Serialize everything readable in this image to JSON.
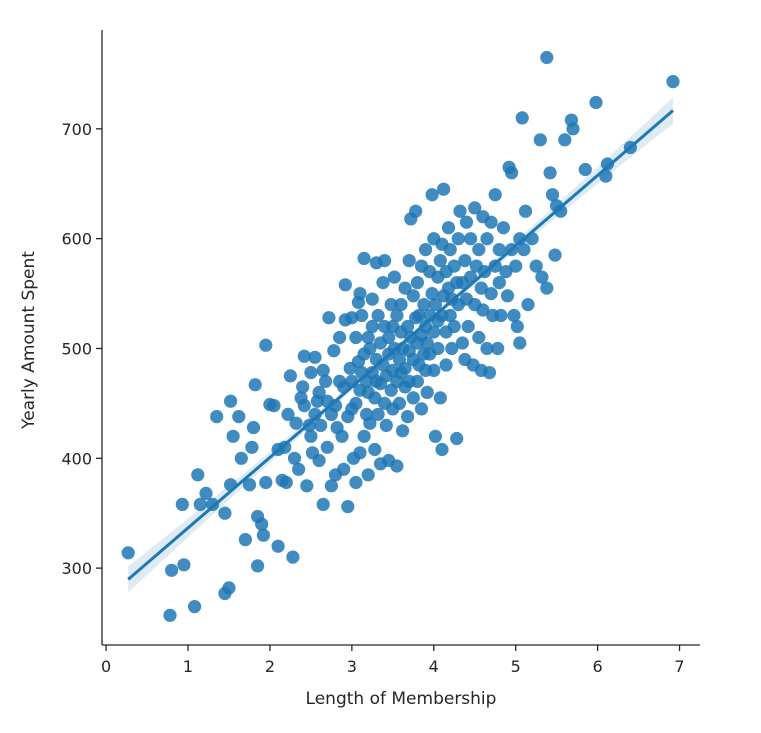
{
  "chart_data": {
    "type": "scatter",
    "xlabel": "Length of Membership",
    "ylabel": "Yearly Amount Spent",
    "xlim": [
      -0.05,
      7.25
    ],
    "ylim": [
      230,
      790
    ],
    "xticks": [
      0,
      1,
      2,
      3,
      4,
      5,
      6,
      7
    ],
    "yticks": [
      300,
      400,
      500,
      600,
      700
    ],
    "grid": false,
    "legend": "none",
    "colors": {
      "points": "#1f77b4",
      "line": "#1f77b4",
      "band": "#1f77b4"
    },
    "regression": {
      "x_range": [
        0.27,
        6.92
      ],
      "slope": 64.2,
      "intercept": 272.4,
      "confidence_band": {
        "half_width_ends": 12,
        "half_width_mean": 3
      }
    },
    "points": [
      [
        0.27,
        314
      ],
      [
        0.78,
        257
      ],
      [
        0.8,
        298
      ],
      [
        0.95,
        303
      ],
      [
        0.93,
        358
      ],
      [
        1.08,
        265
      ],
      [
        1.12,
        385
      ],
      [
        1.15,
        358
      ],
      [
        1.22,
        368
      ],
      [
        1.3,
        358
      ],
      [
        1.35,
        438
      ],
      [
        1.45,
        350
      ],
      [
        1.45,
        277
      ],
      [
        1.5,
        282
      ],
      [
        1.52,
        376
      ],
      [
        1.52,
        452
      ],
      [
        1.55,
        420
      ],
      [
        1.62,
        438
      ],
      [
        1.65,
        400
      ],
      [
        1.7,
        326
      ],
      [
        1.75,
        376
      ],
      [
        1.78,
        410
      ],
      [
        1.8,
        428
      ],
      [
        1.82,
        467
      ],
      [
        1.85,
        302
      ],
      [
        1.85,
        347
      ],
      [
        1.9,
        340
      ],
      [
        1.92,
        330
      ],
      [
        1.95,
        378
      ],
      [
        1.95,
        503
      ],
      [
        2.0,
        449
      ],
      [
        2.05,
        448
      ],
      [
        2.1,
        320
      ],
      [
        2.1,
        408
      ],
      [
        2.15,
        380
      ],
      [
        2.18,
        410
      ],
      [
        2.2,
        378
      ],
      [
        2.22,
        440
      ],
      [
        2.25,
        475
      ],
      [
        2.28,
        310
      ],
      [
        2.3,
        400
      ],
      [
        2.32,
        432
      ],
      [
        2.35,
        390
      ],
      [
        2.38,
        455
      ],
      [
        2.4,
        465
      ],
      [
        2.42,
        448
      ],
      [
        2.42,
        493
      ],
      [
        2.45,
        375
      ],
      [
        2.48,
        430
      ],
      [
        2.5,
        420
      ],
      [
        2.5,
        478
      ],
      [
        2.52,
        405
      ],
      [
        2.55,
        492
      ],
      [
        2.55,
        440
      ],
      [
        2.58,
        452
      ],
      [
        2.6,
        398
      ],
      [
        2.6,
        460
      ],
      [
        2.62,
        430
      ],
      [
        2.65,
        358
      ],
      [
        2.65,
        480
      ],
      [
        2.68,
        470
      ],
      [
        2.7,
        410
      ],
      [
        2.7,
        452
      ],
      [
        2.72,
        528
      ],
      [
        2.75,
        375
      ],
      [
        2.75,
        440
      ],
      [
        2.78,
        498
      ],
      [
        2.8,
        448
      ],
      [
        2.8,
        385
      ],
      [
        2.82,
        428
      ],
      [
        2.85,
        470
      ],
      [
        2.85,
        510
      ],
      [
        2.88,
        420
      ],
      [
        2.9,
        465
      ],
      [
        2.9,
        390
      ],
      [
        2.92,
        558
      ],
      [
        2.92,
        526
      ],
      [
        2.95,
        356
      ],
      [
        2.95,
        438
      ],
      [
        2.98,
        482
      ],
      [
        3.0,
        445
      ],
      [
        3.0,
        470
      ],
      [
        3.0,
        528
      ],
      [
        3.02,
        400
      ],
      [
        3.05,
        510
      ],
      [
        3.05,
        378
      ],
      [
        3.05,
        450
      ],
      [
        3.08,
        488
      ],
      [
        3.08,
        542
      ],
      [
        3.1,
        462
      ],
      [
        3.1,
        405
      ],
      [
        3.1,
        550
      ],
      [
        3.12,
        478
      ],
      [
        3.12,
        530
      ],
      [
        3.15,
        420
      ],
      [
        3.15,
        495
      ],
      [
        3.15,
        582
      ],
      [
        3.18,
        440
      ],
      [
        3.18,
        470
      ],
      [
        3.2,
        510
      ],
      [
        3.2,
        385
      ],
      [
        3.2,
        460
      ],
      [
        3.22,
        500
      ],
      [
        3.22,
        432
      ],
      [
        3.25,
        478
      ],
      [
        3.25,
        545
      ],
      [
        3.25,
        520
      ],
      [
        3.28,
        455
      ],
      [
        3.28,
        408
      ],
      [
        3.3,
        490
      ],
      [
        3.3,
        578
      ],
      [
        3.3,
        470
      ],
      [
        3.32,
        530
      ],
      [
        3.32,
        440
      ],
      [
        3.35,
        505
      ],
      [
        3.35,
        395
      ],
      [
        3.35,
        468
      ],
      [
        3.38,
        485
      ],
      [
        3.38,
        560
      ],
      [
        3.4,
        450
      ],
      [
        3.4,
        520
      ],
      [
        3.4,
        580
      ],
      [
        3.42,
        475
      ],
      [
        3.42,
        430
      ],
      [
        3.45,
        510
      ],
      [
        3.45,
        495
      ],
      [
        3.45,
        398
      ],
      [
        3.48,
        540
      ],
      [
        3.48,
        462
      ],
      [
        3.5,
        480
      ],
      [
        3.5,
        520
      ],
      [
        3.5,
        445
      ],
      [
        3.52,
        500
      ],
      [
        3.52,
        565
      ],
      [
        3.55,
        470
      ],
      [
        3.55,
        530
      ],
      [
        3.55,
        393
      ],
      [
        3.58,
        490
      ],
      [
        3.58,
        450
      ],
      [
        3.6,
        515
      ],
      [
        3.6,
        478
      ],
      [
        3.6,
        540
      ],
      [
        3.62,
        425
      ],
      [
        3.62,
        500
      ],
      [
        3.65,
        482
      ],
      [
        3.65,
        555
      ],
      [
        3.65,
        465
      ],
      [
        3.68,
        520
      ],
      [
        3.68,
        438
      ],
      [
        3.7,
        498
      ],
      [
        3.7,
        580
      ],
      [
        3.7,
        470
      ],
      [
        3.72,
        510
      ],
      [
        3.72,
        618
      ],
      [
        3.75,
        490
      ],
      [
        3.75,
        548
      ],
      [
        3.75,
        455
      ],
      [
        3.78,
        528
      ],
      [
        3.78,
        625
      ],
      [
        3.8,
        505
      ],
      [
        3.8,
        470
      ],
      [
        3.8,
        560
      ],
      [
        3.82,
        485
      ],
      [
        3.82,
        530
      ],
      [
        3.85,
        512
      ],
      [
        3.85,
        575
      ],
      [
        3.85,
        445
      ],
      [
        3.88,
        495
      ],
      [
        3.88,
        540
      ],
      [
        3.9,
        520
      ],
      [
        3.9,
        480
      ],
      [
        3.9,
        590
      ],
      [
        3.92,
        505
      ],
      [
        3.92,
        460
      ],
      [
        3.95,
        530
      ],
      [
        3.95,
        570
      ],
      [
        3.95,
        495
      ],
      [
        3.98,
        550
      ],
      [
        3.98,
        640
      ],
      [
        4.0,
        515
      ],
      [
        4.0,
        480
      ],
      [
        4.0,
        600
      ],
      [
        4.02,
        540
      ],
      [
        4.02,
        420
      ],
      [
        4.05,
        525
      ],
      [
        4.05,
        565
      ],
      [
        4.05,
        500
      ],
      [
        4.08,
        580
      ],
      [
        4.08,
        455
      ],
      [
        4.1,
        530
      ],
      [
        4.1,
        408
      ],
      [
        4.1,
        595
      ],
      [
        4.12,
        548
      ],
      [
        4.12,
        645
      ],
      [
        4.15,
        515
      ],
      [
        4.15,
        570
      ],
      [
        4.15,
        485
      ],
      [
        4.18,
        555
      ],
      [
        4.18,
        610
      ],
      [
        4.2,
        530
      ],
      [
        4.2,
        590
      ],
      [
        4.22,
        500
      ],
      [
        4.22,
        545
      ],
      [
        4.25,
        575
      ],
      [
        4.25,
        520
      ],
      [
        4.28,
        560
      ],
      [
        4.28,
        418
      ],
      [
        4.3,
        600
      ],
      [
        4.3,
        540
      ],
      [
        4.32,
        625
      ],
      [
        4.35,
        505
      ],
      [
        4.35,
        560
      ],
      [
        4.38,
        580
      ],
      [
        4.38,
        490
      ],
      [
        4.4,
        545
      ],
      [
        4.4,
        615
      ],
      [
        4.42,
        520
      ],
      [
        4.45,
        600
      ],
      [
        4.45,
        565
      ],
      [
        4.48,
        485
      ],
      [
        4.5,
        540
      ],
      [
        4.5,
        628
      ],
      [
        4.52,
        575
      ],
      [
        4.55,
        510
      ],
      [
        4.55,
        590
      ],
      [
        4.58,
        555
      ],
      [
        4.58,
        480
      ],
      [
        4.6,
        620
      ],
      [
        4.6,
        535
      ],
      [
        4.62,
        570
      ],
      [
        4.65,
        500
      ],
      [
        4.65,
        600
      ],
      [
        4.68,
        478
      ],
      [
        4.7,
        550
      ],
      [
        4.7,
        615
      ],
      [
        4.72,
        530
      ],
      [
        4.75,
        575
      ],
      [
        4.75,
        640
      ],
      [
        4.78,
        500
      ],
      [
        4.8,
        560
      ],
      [
        4.8,
        590
      ],
      [
        4.82,
        530
      ],
      [
        4.85,
        610
      ],
      [
        4.88,
        570
      ],
      [
        4.9,
        548
      ],
      [
        4.92,
        665
      ],
      [
        4.95,
        590
      ],
      [
        4.95,
        660
      ],
      [
        4.98,
        530
      ],
      [
        5.0,
        575
      ],
      [
        5.02,
        520
      ],
      [
        5.05,
        505
      ],
      [
        5.05,
        600
      ],
      [
        5.08,
        710
      ],
      [
        5.1,
        590
      ],
      [
        5.12,
        625
      ],
      [
        5.15,
        540
      ],
      [
        5.2,
        600
      ],
      [
        5.25,
        575
      ],
      [
        5.3,
        690
      ],
      [
        5.32,
        565
      ],
      [
        5.38,
        765
      ],
      [
        5.38,
        555
      ],
      [
        5.42,
        660
      ],
      [
        5.45,
        640
      ],
      [
        5.48,
        585
      ],
      [
        5.5,
        630
      ],
      [
        5.55,
        625
      ],
      [
        5.6,
        690
      ],
      [
        5.68,
        708
      ],
      [
        5.7,
        700
      ],
      [
        5.85,
        663
      ],
      [
        5.98,
        724
      ],
      [
        6.1,
        657
      ],
      [
        6.12,
        668
      ],
      [
        6.4,
        683
      ],
      [
        6.92,
        743
      ]
    ]
  }
}
